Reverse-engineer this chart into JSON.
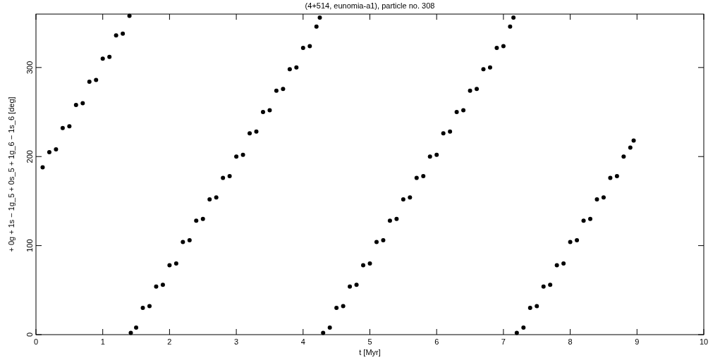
{
  "chart_data": {
    "type": "scatter",
    "title": "(4+514, eunomia-a1), particle no. 308",
    "xlabel": "t [Myr]",
    "ylabel": "+ 0g + 1s − 1g_5 + 0s_5 + 1g_6 − 1s_6 [deg]",
    "xlim": [
      0,
      10
    ],
    "ylim": [
      0,
      360
    ],
    "xticks": [
      0,
      1,
      2,
      3,
      4,
      5,
      6,
      7,
      8,
      9,
      10
    ],
    "yticks": [
      0,
      100,
      200,
      300
    ],
    "grid": false,
    "marker": "circle",
    "color": "#000000",
    "x": [
      0.1,
      0.2,
      0.3,
      0.4,
      0.5,
      0.6,
      0.7,
      0.8,
      0.9,
      1.0,
      1.1,
      1.2,
      1.3,
      1.4,
      1.42,
      1.5,
      1.6,
      1.7,
      1.8,
      1.9,
      2.0,
      2.1,
      2.2,
      2.3,
      2.4,
      2.5,
      2.6,
      2.7,
      2.8,
      2.9,
      3.0,
      3.1,
      3.2,
      3.3,
      3.4,
      3.5,
      3.6,
      3.7,
      3.8,
      3.9,
      4.0,
      4.1,
      4.2,
      4.25,
      4.3,
      4.4,
      4.5,
      4.6,
      4.7,
      4.8,
      4.9,
      5.0,
      5.1,
      5.2,
      5.3,
      5.4,
      5.5,
      5.6,
      5.7,
      5.8,
      5.9,
      6.0,
      6.1,
      6.2,
      6.3,
      6.4,
      6.5,
      6.6,
      6.7,
      6.8,
      6.9,
      7.0,
      7.1,
      7.15,
      7.2,
      7.3,
      7.4,
      7.5,
      7.6,
      7.7,
      7.8,
      7.9,
      8.0,
      8.1,
      8.2,
      8.3,
      8.4,
      8.5,
      8.6,
      8.7,
      8.8,
      8.9,
      8.95
    ],
    "values": [
      188,
      205,
      208,
      232,
      234,
      258,
      260,
      284,
      286,
      310,
      312,
      336,
      338,
      358,
      2,
      8,
      30,
      32,
      54,
      56,
      78,
      80,
      104,
      106,
      128,
      130,
      152,
      154,
      176,
      178,
      200,
      202,
      226,
      228,
      250,
      252,
      274,
      276,
      298,
      300,
      322,
      324,
      346,
      356,
      2,
      8,
      30,
      32,
      54,
      56,
      78,
      80,
      104,
      106,
      128,
      130,
      152,
      154,
      176,
      178,
      200,
      202,
      226,
      228,
      250,
      252,
      274,
      276,
      298,
      300,
      322,
      324,
      346,
      356,
      2,
      8,
      30,
      32,
      54,
      56,
      78,
      80,
      104,
      106,
      128,
      130,
      152,
      154,
      176,
      178,
      200,
      210,
      218
    ]
  }
}
